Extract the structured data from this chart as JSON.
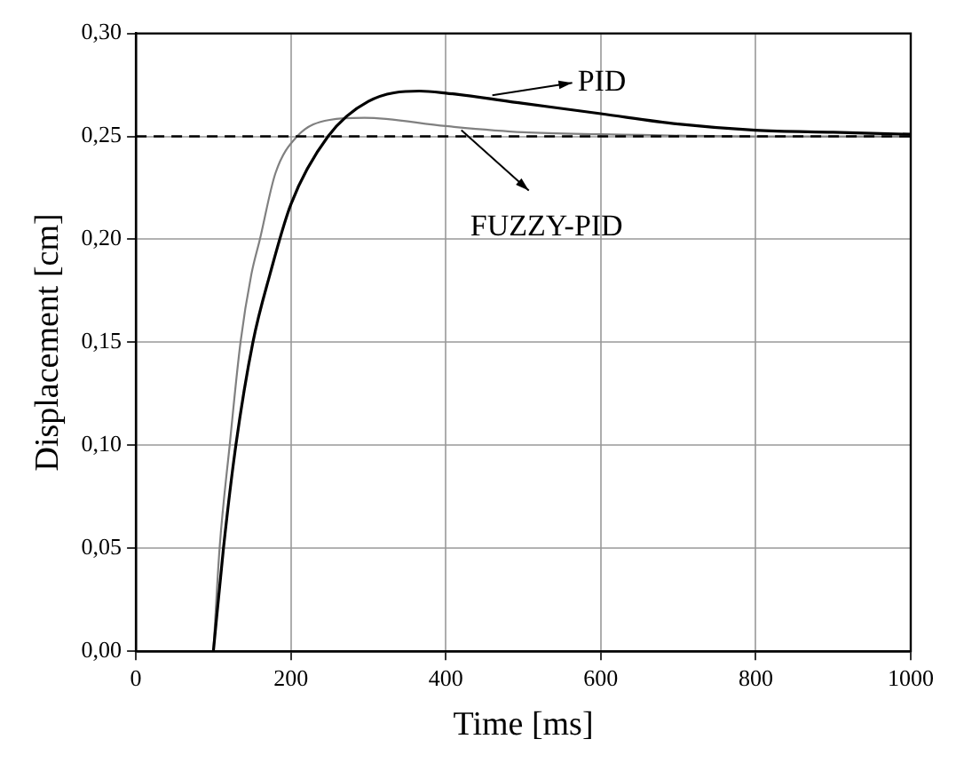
{
  "chart_data": {
    "type": "line",
    "xlabel": "Time [ms]",
    "ylabel": "Displacement [cm]",
    "xlim": [
      0,
      1000
    ],
    "xticks": [
      0,
      200,
      400,
      600,
      800,
      1000
    ],
    "ylim": [
      0,
      0.3
    ],
    "yticks": [
      {
        "value": 0,
        "label": "0,00"
      },
      {
        "value": 0.05,
        "label": "0,05"
      },
      {
        "value": 0.1,
        "label": "0,10"
      },
      {
        "value": 0.15,
        "label": "0,15"
      },
      {
        "value": 0.2,
        "label": "0,20"
      },
      {
        "value": 0.25,
        "label": "0,25"
      },
      {
        "value": 0.3,
        "label": "0,30"
      }
    ],
    "grid": true,
    "marker": "none",
    "line_style": "solid",
    "series": [
      {
        "color": "#000000",
        "x": [
          100,
          113,
          129,
          151,
          173,
          200,
          248,
          300,
          366,
          400,
          500,
          600,
          700,
          800,
          900,
          1000
        ],
        "values": [
          0,
          0.05,
          0.1,
          0.15,
          0.183,
          0.217,
          0.25,
          0.267,
          0.272,
          0.271,
          0.266,
          0.261,
          0.256,
          0.253,
          0.252,
          0.251
        ]
      },
      {
        "color": "#808080",
        "x": [
          100,
          108,
          121,
          135,
          149,
          160,
          180,
          208,
          250,
          295,
          400,
          500,
          600,
          800,
          1000
        ],
        "values": [
          0,
          0.05,
          0.1,
          0.15,
          0.183,
          0.2,
          0.232,
          0.25,
          0.258,
          0.259,
          0.255,
          0.252,
          0.251,
          0.25,
          0.25
        ]
      }
    ],
    "ref_lines": [
      {
        "axis": "y",
        "value": 0.25,
        "color": "#000000",
        "line_style": "dashed"
      }
    ],
    "annotations": [
      {
        "text": "PID",
        "x": 460,
        "y": 0.27
      },
      {
        "text": "FUZZY-PID",
        "x": 420,
        "y": 0.253
      }
    ]
  }
}
